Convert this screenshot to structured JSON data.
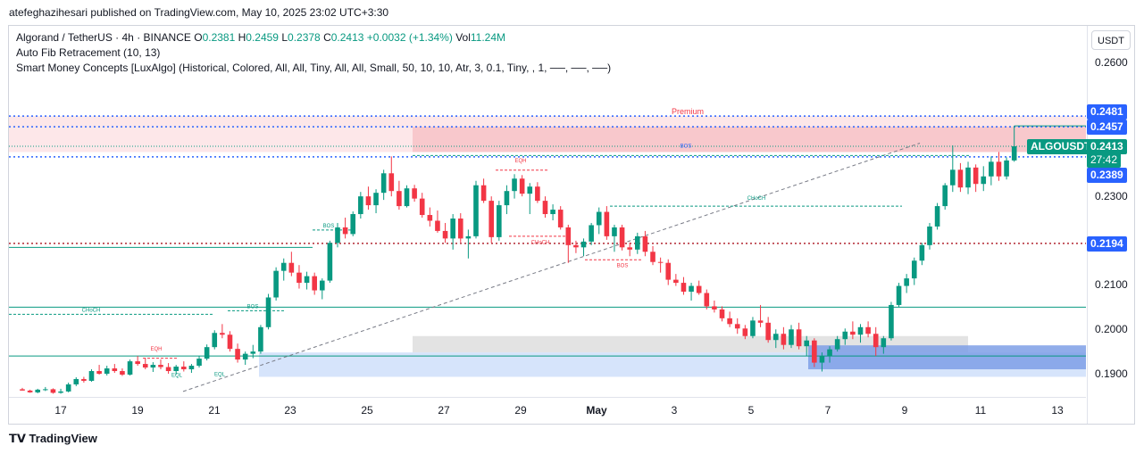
{
  "header": {
    "publisher": "atefeghazihesari published on TradingView.com, May 10, 2025 23:02 UTC+3:30"
  },
  "legend": {
    "symbol": "Algorand / TetherUS · 4h · BINANCE",
    "o_label": "O",
    "o": "0.2381",
    "h_label": "H",
    "h": "0.2459",
    "l_label": "L",
    "l": "0.2378",
    "c_label": "C",
    "c": "0.2413",
    "change": "+0.0032 (+1.34%)",
    "vol_label": "Vol",
    "vol": "11.24M",
    "ind1": "Auto Fib Retracement (10, 13)",
    "ind2": "Smart Money Concepts [LuxAlgo] (Historical, Colored, All, All, Tiny, All, All, Small, 50, 10, 10, Atr, 3, 0.1, Tiny, , 1, ──, ──, ──)"
  },
  "currency_button": "USDT",
  "price_axis": [
    "0.2600",
    "0.2300",
    "0.2100",
    "0.2000",
    "0.1900"
  ],
  "price_tags": {
    "t2481": "0.2481",
    "t2457": "0.2457",
    "symbol": "ALGOUSDT",
    "t2413": "0.2413",
    "countdown": "27:42",
    "t2389": "0.2389",
    "t2194": "0.2194"
  },
  "time_axis": [
    "17",
    "19",
    "21",
    "23",
    "25",
    "27",
    "29",
    "May",
    "3",
    "5",
    "7",
    "9",
    "11",
    "13"
  ],
  "annotations": {
    "premium": "Premium",
    "bos": "BOS",
    "choch": "CHoCH",
    "eqh": "EQH",
    "eql": "EQL"
  },
  "colors": {
    "up": "#089981",
    "down": "#f23645",
    "fib": "#2962ff",
    "red_line": "#b22833",
    "green_line": "#089981"
  },
  "brand": "TradingView",
  "chart_data": {
    "type": "candlestick",
    "symbol": "ALGOUSDT",
    "timeframe": "4h",
    "ylim": [
      0.186,
      0.266
    ],
    "x_ticks": [
      "17",
      "19",
      "21",
      "23",
      "25",
      "27",
      "29",
      "May",
      "3",
      "5",
      "7",
      "9",
      "11",
      "13"
    ],
    "candles": [
      [
        0.1865,
        0.1868,
        0.1863,
        0.1862
      ],
      [
        0.1862,
        0.1864,
        0.1857,
        0.1858
      ],
      [
        0.1858,
        0.1866,
        0.1856,
        0.1864
      ],
      [
        0.1864,
        0.187,
        0.1861,
        0.1865
      ],
      [
        0.1865,
        0.1867,
        0.1855,
        0.1857
      ],
      [
        0.1857,
        0.1866,
        0.1855,
        0.186
      ],
      [
        0.186,
        0.188,
        0.1858,
        0.1876
      ],
      [
        0.1876,
        0.1892,
        0.1872,
        0.1888
      ],
      [
        0.1888,
        0.1893,
        0.188,
        0.1884
      ],
      [
        0.1884,
        0.191,
        0.1882,
        0.1906
      ],
      [
        0.1906,
        0.192,
        0.1898,
        0.19
      ],
      [
        0.19,
        0.1918,
        0.1896,
        0.1912
      ],
      [
        0.1912,
        0.1922,
        0.1902,
        0.1906
      ],
      [
        0.1906,
        0.1912,
        0.1895,
        0.1898
      ],
      [
        0.1898,
        0.1932,
        0.1896,
        0.1928
      ],
      [
        0.1928,
        0.194,
        0.1918,
        0.1922
      ],
      [
        0.1922,
        0.1936,
        0.191,
        0.1914
      ],
      [
        0.1914,
        0.1926,
        0.1904,
        0.192
      ],
      [
        0.192,
        0.1932,
        0.191,
        0.1915
      ],
      [
        0.1915,
        0.1924,
        0.19,
        0.1906
      ],
      [
        0.1906,
        0.192,
        0.1898,
        0.1916
      ],
      [
        0.1916,
        0.1928,
        0.1905,
        0.191
      ],
      [
        0.191,
        0.1922,
        0.1902,
        0.1918
      ],
      [
        0.1918,
        0.194,
        0.1914,
        0.1934
      ],
      [
        0.1934,
        0.1966,
        0.193,
        0.196
      ],
      [
        0.196,
        0.1998,
        0.1955,
        0.1992
      ],
      [
        0.1992,
        0.2012,
        0.198,
        0.1988
      ],
      [
        0.1988,
        0.1996,
        0.195,
        0.1956
      ],
      [
        0.1956,
        0.1968,
        0.1925,
        0.1932
      ],
      [
        0.1932,
        0.195,
        0.192,
        0.1945
      ],
      [
        0.1945,
        0.1965,
        0.1935,
        0.195
      ],
      [
        0.195,
        0.201,
        0.1945,
        0.2005
      ],
      [
        0.2005,
        0.208,
        0.2,
        0.2072
      ],
      [
        0.2072,
        0.214,
        0.2065,
        0.2132
      ],
      [
        0.2132,
        0.216,
        0.211,
        0.215
      ],
      [
        0.215,
        0.2175,
        0.212,
        0.2128
      ],
      [
        0.2128,
        0.2145,
        0.2092,
        0.2105
      ],
      [
        0.2105,
        0.213,
        0.209,
        0.212
      ],
      [
        0.212,
        0.2128,
        0.2078,
        0.2088
      ],
      [
        0.2088,
        0.2115,
        0.2068,
        0.211
      ],
      [
        0.211,
        0.22,
        0.2105,
        0.2195
      ],
      [
        0.2195,
        0.224,
        0.2185,
        0.223
      ],
      [
        0.223,
        0.2252,
        0.2205,
        0.2215
      ],
      [
        0.2215,
        0.2266,
        0.221,
        0.226
      ],
      [
        0.226,
        0.231,
        0.225,
        0.23
      ],
      [
        0.23,
        0.2322,
        0.227,
        0.228
      ],
      [
        0.228,
        0.2316,
        0.2262,
        0.2308
      ],
      [
        0.2308,
        0.236,
        0.2292,
        0.2352
      ],
      [
        0.2352,
        0.239,
        0.23,
        0.2312
      ],
      [
        0.2312,
        0.2335,
        0.227,
        0.2278
      ],
      [
        0.2278,
        0.2325,
        0.2275,
        0.2318
      ],
      [
        0.2318,
        0.2326,
        0.2288,
        0.2295
      ],
      [
        0.2295,
        0.2308,
        0.2252,
        0.2258
      ],
      [
        0.2258,
        0.2275,
        0.2232,
        0.2245
      ],
      [
        0.2245,
        0.2268,
        0.2218,
        0.2222
      ],
      [
        0.2222,
        0.224,
        0.2195,
        0.2205
      ],
      [
        0.2205,
        0.226,
        0.218,
        0.225
      ],
      [
        0.225,
        0.2262,
        0.2196,
        0.2205
      ],
      [
        0.2205,
        0.2225,
        0.216,
        0.221
      ],
      [
        0.221,
        0.2335,
        0.2205,
        0.2325
      ],
      [
        0.2325,
        0.234,
        0.2285,
        0.229
      ],
      [
        0.229,
        0.23,
        0.2195,
        0.2208
      ],
      [
        0.2208,
        0.229,
        0.22,
        0.228
      ],
      [
        0.228,
        0.2325,
        0.226,
        0.2312
      ],
      [
        0.2312,
        0.235,
        0.2295,
        0.234
      ],
      [
        0.234,
        0.2348,
        0.23,
        0.2306
      ],
      [
        0.2306,
        0.233,
        0.226,
        0.2322
      ],
      [
        0.2322,
        0.2332,
        0.2285,
        0.229
      ],
      [
        0.229,
        0.23,
        0.2252,
        0.226
      ],
      [
        0.226,
        0.2282,
        0.2246,
        0.227
      ],
      [
        0.227,
        0.2278,
        0.2225,
        0.223
      ],
      [
        0.223,
        0.2236,
        0.215,
        0.219
      ],
      [
        0.219,
        0.22,
        0.2172,
        0.2185
      ],
      [
        0.2185,
        0.2205,
        0.2165,
        0.2198
      ],
      [
        0.2198,
        0.224,
        0.219,
        0.2235
      ],
      [
        0.2235,
        0.2275,
        0.2215,
        0.2265
      ],
      [
        0.2265,
        0.2278,
        0.2202,
        0.221
      ],
      [
        0.221,
        0.2236,
        0.2175,
        0.223
      ],
      [
        0.223,
        0.2236,
        0.2178,
        0.2185
      ],
      [
        0.2185,
        0.2196,
        0.2165,
        0.218
      ],
      [
        0.218,
        0.2218,
        0.217,
        0.221
      ],
      [
        0.221,
        0.2222,
        0.2165,
        0.2175
      ],
      [
        0.2175,
        0.2188,
        0.2145,
        0.2152
      ],
      [
        0.2152,
        0.2162,
        0.2128,
        0.215
      ],
      [
        0.215,
        0.2158,
        0.21,
        0.2112
      ],
      [
        0.2112,
        0.2125,
        0.2098,
        0.2105
      ],
      [
        0.2105,
        0.2118,
        0.2078,
        0.2085
      ],
      [
        0.2085,
        0.2105,
        0.2065,
        0.2098
      ],
      [
        0.2098,
        0.211,
        0.2078,
        0.2082
      ],
      [
        0.2082,
        0.209,
        0.2045,
        0.2052
      ],
      [
        0.2052,
        0.2065,
        0.2038,
        0.2045
      ],
      [
        0.2045,
        0.2052,
        0.2018,
        0.2025
      ],
      [
        0.2025,
        0.204,
        0.2005,
        0.2012
      ],
      [
        0.2012,
        0.2025,
        0.199,
        0.2002
      ],
      [
        0.2002,
        0.201,
        0.1978,
        0.1985
      ],
      [
        0.1985,
        0.2028,
        0.198,
        0.202
      ],
      [
        0.202,
        0.2055,
        0.2005,
        0.2015
      ],
      [
        0.2015,
        0.2028,
        0.197,
        0.1976
      ],
      [
        0.1976,
        0.2,
        0.1958,
        0.199
      ],
      [
        0.199,
        0.2005,
        0.1955,
        0.1965
      ],
      [
        0.1965,
        0.201,
        0.1958,
        0.2
      ],
      [
        0.2,
        0.2015,
        0.1955,
        0.1962
      ],
      [
        0.1962,
        0.1985,
        0.194,
        0.1975
      ],
      [
        0.1975,
        0.198,
        0.1915,
        0.1925
      ],
      [
        0.1925,
        0.1948,
        0.1905,
        0.194
      ],
      [
        0.194,
        0.1962,
        0.1925,
        0.1955
      ],
      [
        0.1955,
        0.1985,
        0.195,
        0.1978
      ],
      [
        0.1978,
        0.2002,
        0.1965,
        0.1995
      ],
      [
        0.1995,
        0.2018,
        0.1978,
        0.1988
      ],
      [
        0.1988,
        0.2012,
        0.197,
        0.2005
      ],
      [
        0.2005,
        0.2018,
        0.1982,
        0.199
      ],
      [
        0.199,
        0.2005,
        0.194,
        0.196
      ],
      [
        0.196,
        0.1985,
        0.1945,
        0.198
      ],
      [
        0.198,
        0.2062,
        0.1975,
        0.2055
      ],
      [
        0.2055,
        0.2105,
        0.205,
        0.2098
      ],
      [
        0.2098,
        0.2125,
        0.2082,
        0.2115
      ],
      [
        0.2115,
        0.2162,
        0.21,
        0.2155
      ],
      [
        0.2155,
        0.2195,
        0.2145,
        0.219
      ],
      [
        0.219,
        0.224,
        0.218,
        0.2232
      ],
      [
        0.2232,
        0.2285,
        0.2225,
        0.2278
      ],
      [
        0.2278,
        0.233,
        0.227,
        0.2325
      ],
      [
        0.2325,
        0.2415,
        0.231,
        0.236
      ],
      [
        0.236,
        0.2375,
        0.231,
        0.232
      ],
      [
        0.232,
        0.2378,
        0.2305,
        0.2365
      ],
      [
        0.2365,
        0.2372,
        0.231,
        0.2328
      ],
      [
        0.2328,
        0.2368,
        0.2312,
        0.2345
      ],
      [
        0.2345,
        0.239,
        0.2325,
        0.2378
      ],
      [
        0.2378,
        0.24,
        0.2335,
        0.2345
      ],
      [
        0.2345,
        0.2388,
        0.2338,
        0.2381
      ],
      [
        0.2381,
        0.2459,
        0.2378,
        0.2413
      ]
    ],
    "horizontal_levels": [
      {
        "price": 0.2481,
        "style": "dotted",
        "color": "#2962ff"
      },
      {
        "price": 0.2457,
        "style": "dotted",
        "color": "#2962ff"
      },
      {
        "price": 0.2389,
        "style": "dotted",
        "color": "#2962ff"
      },
      {
        "price": 0.2194,
        "style": "dotted",
        "color": "#b22833"
      }
    ],
    "zones": [
      {
        "name": "Premium",
        "from": 0.24,
        "to": 0.2481,
        "color": "#f8c8cc"
      },
      {
        "name": "Discount",
        "from": 0.1893,
        "to": 0.1948,
        "color": "#cfe0fb"
      },
      {
        "name": "Order block",
        "from": 0.1912,
        "to": 0.196,
        "color": "#7a9ee8"
      },
      {
        "name": "Equilibrium",
        "from": 0.1948,
        "to": 0.1985,
        "color": "#dcdcdc"
      }
    ]
  }
}
